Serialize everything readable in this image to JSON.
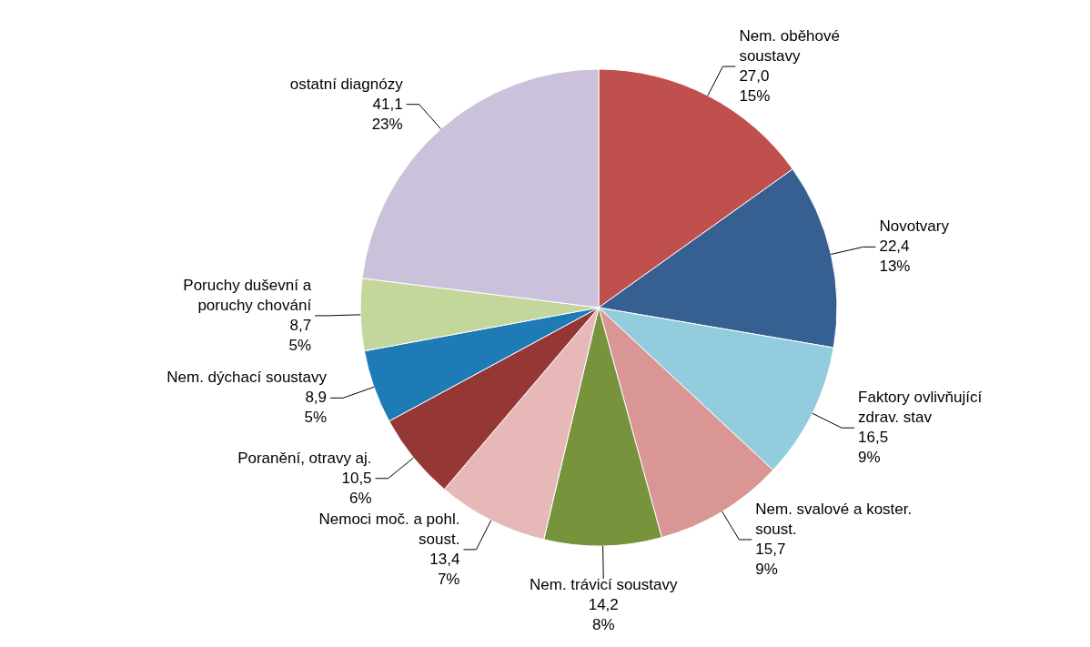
{
  "chart_data": {
    "type": "pie",
    "categories": [
      "Nem. oběhové\nsoustavy",
      "Novotvary",
      "Faktory ovlivňující\nzdrav. stav",
      "Nem. svalové  a koster.\nsoust.",
      "Nem. trávicí soustavy",
      "Nemoci moč. a pohl.\nsoust.",
      "Poranění, otravy aj.",
      "Nem. dýchací soustavy",
      "Poruchy duševní  a\nporuchy chování",
      "ostatní diagnózy"
    ],
    "values": [
      27.0,
      22.4,
      16.5,
      15.7,
      14.2,
      13.4,
      10.5,
      8.9,
      8.7,
      41.1
    ],
    "colors": [
      "#c0504d",
      "#376092",
      "#93cddd",
      "#d99694",
      "#77933c",
      "#e6b9b8",
      "#953735",
      "#1f7bb6",
      "#c3d69b",
      "#ccc1da"
    ],
    "value_labels": [
      "27,0\n15%",
      "22,4\n13%",
      "16,5\n9%",
      "15,7\n9%",
      "14,2\n8%",
      "13,4\n7%",
      "10,5\n6%",
      "8,9\n5%",
      "8,7\n5%",
      "41,1\n23%"
    ]
  }
}
